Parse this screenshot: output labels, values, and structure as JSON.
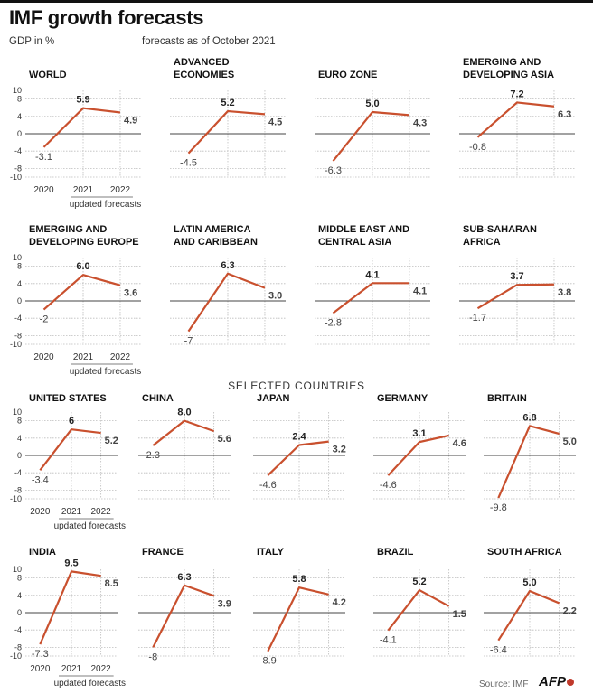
{
  "header": {
    "title": "IMF growth forecasts",
    "unit_label": "GDP in %",
    "forecast_note": "forecasts as of October 2021",
    "section_title": "SELECTED COUNTRIES",
    "source": "Source: IMF",
    "logo": "AFP"
  },
  "colors": {
    "line": "#c9502e",
    "grid": "#bdbdbd",
    "axis": "#444444",
    "text": "#222222"
  },
  "chart_data": [
    {
      "type": "line",
      "title": "WORLD",
      "categories": [
        "2020",
        "2021",
        "2022"
      ],
      "values": [
        -3.1,
        5.9,
        4.9
      ],
      "labels": [
        "-3.1",
        "5.9",
        "4.9"
      ],
      "ylim": [
        -10,
        10
      ],
      "yticks": [
        "10",
        "8",
        "4",
        "0",
        "-4",
        "-8",
        "-10"
      ],
      "xlabel_note": "updated forecasts"
    },
    {
      "type": "line",
      "title": "ADVANCED ECONOMIES",
      "categories": [
        "2020",
        "2021",
        "2022"
      ],
      "values": [
        -4.5,
        5.2,
        4.5
      ],
      "labels": [
        "-4.5",
        "5.2",
        "4.5"
      ],
      "ylim": [
        -10,
        10
      ]
    },
    {
      "type": "line",
      "title": "EURO ZONE",
      "categories": [
        "2020",
        "2021",
        "2022"
      ],
      "values": [
        -6.3,
        5.0,
        4.3
      ],
      "labels": [
        "-6.3",
        "5.0",
        "4.3"
      ],
      "ylim": [
        -10,
        10
      ]
    },
    {
      "type": "line",
      "title": "EMERGING AND DEVELOPING ASIA",
      "categories": [
        "2020",
        "2021",
        "2022"
      ],
      "values": [
        -0.8,
        7.2,
        6.3
      ],
      "labels": [
        "-0.8",
        "7.2",
        "6.3"
      ],
      "ylim": [
        -10,
        10
      ]
    },
    {
      "type": "line",
      "title": "EMERGING AND DEVELOPING EUROPE",
      "categories": [
        "2020",
        "2021",
        "2022"
      ],
      "values": [
        -2,
        6.0,
        3.6
      ],
      "labels": [
        "-2",
        "6.0",
        "3.6"
      ],
      "ylim": [
        -10,
        10
      ],
      "yticks": [
        "10",
        "8",
        "4",
        "0",
        "-4",
        "-8",
        "-10"
      ],
      "xlabel_note": "updated forecasts"
    },
    {
      "type": "line",
      "title": "LATIN AMERICA AND CARIBBEAN",
      "categories": [
        "2020",
        "2021",
        "2022"
      ],
      "values": [
        -7,
        6.3,
        3.0
      ],
      "labels": [
        "-7",
        "6.3",
        "3.0"
      ],
      "ylim": [
        -10,
        10
      ]
    },
    {
      "type": "line",
      "title": "MIDDLE EAST AND CENTRAL ASIA",
      "categories": [
        "2020",
        "2021",
        "2022"
      ],
      "values": [
        -2.8,
        4.1,
        4.1
      ],
      "labels": [
        "-2.8",
        "4.1",
        "4.1"
      ],
      "ylim": [
        -10,
        10
      ]
    },
    {
      "type": "line",
      "title": "SUB-SAHARAN AFRICA",
      "categories": [
        "2020",
        "2021",
        "2022"
      ],
      "values": [
        -1.7,
        3.7,
        3.8
      ],
      "labels": [
        "-1.7",
        "3.7",
        "3.8"
      ],
      "ylim": [
        -10,
        10
      ]
    },
    {
      "type": "line",
      "title": "UNITED STATES",
      "categories": [
        "2020",
        "2021",
        "2022"
      ],
      "values": [
        -3.4,
        6,
        5.2
      ],
      "labels": [
        "-3.4",
        "6",
        "5.2"
      ],
      "ylim": [
        -10,
        10
      ],
      "yticks": [
        "10",
        "8",
        "4",
        "0",
        "-4",
        "-8",
        "-10"
      ],
      "xlabel_note": "updated forecasts"
    },
    {
      "type": "line",
      "title": "CHINA",
      "categories": [
        "2020",
        "2021",
        "2022"
      ],
      "values": [
        2.3,
        8.0,
        5.6
      ],
      "labels": [
        "2.3",
        "8.0",
        "5.6"
      ],
      "ylim": [
        -10,
        10
      ]
    },
    {
      "type": "line",
      "title": "JAPAN",
      "categories": [
        "2020",
        "2021",
        "2022"
      ],
      "values": [
        -4.6,
        2.4,
        3.2
      ],
      "labels": [
        "-4.6",
        "2.4",
        "3.2"
      ],
      "ylim": [
        -10,
        10
      ]
    },
    {
      "type": "line",
      "title": "GERMANY",
      "categories": [
        "2020",
        "2021",
        "2022"
      ],
      "values": [
        -4.6,
        3.1,
        4.6
      ],
      "labels": [
        "-4.6",
        "3.1",
        "4.6"
      ],
      "ylim": [
        -10,
        10
      ]
    },
    {
      "type": "line",
      "title": "BRITAIN",
      "categories": [
        "2020",
        "2021",
        "2022"
      ],
      "values": [
        -9.8,
        6.8,
        5.0
      ],
      "labels": [
        "-9.8",
        "6.8",
        "5.0"
      ],
      "ylim": [
        -10,
        10
      ]
    },
    {
      "type": "line",
      "title": "INDIA",
      "categories": [
        "2020",
        "2021",
        "2022"
      ],
      "values": [
        -7.3,
        9.5,
        8.5
      ],
      "labels": [
        "-7.3",
        "9.5",
        "8.5"
      ],
      "ylim": [
        -10,
        10
      ],
      "yticks": [
        "10",
        "8",
        "4",
        "0",
        "-4",
        "-8",
        "-10"
      ],
      "xlabel_note": "updated forecasts"
    },
    {
      "type": "line",
      "title": "FRANCE",
      "categories": [
        "2020",
        "2021",
        "2022"
      ],
      "values": [
        -8,
        6.3,
        3.9
      ],
      "labels": [
        "-8",
        "6.3",
        "3.9"
      ],
      "ylim": [
        -10,
        10
      ]
    },
    {
      "type": "line",
      "title": "ITALY",
      "categories": [
        "2020",
        "2021",
        "2022"
      ],
      "values": [
        -8.9,
        5.8,
        4.2
      ],
      "labels": [
        "-8.9",
        "5.8",
        "4.2"
      ],
      "ylim": [
        -10,
        10
      ]
    },
    {
      "type": "line",
      "title": "BRAZIL",
      "categories": [
        "2020",
        "2021",
        "2022"
      ],
      "values": [
        -4.1,
        5.2,
        1.5
      ],
      "labels": [
        "-4.1",
        "5.2",
        "1.5"
      ],
      "ylim": [
        -10,
        10
      ]
    },
    {
      "type": "line",
      "title": "SOUTH AFRICA",
      "categories": [
        "2020",
        "2021",
        "2022"
      ],
      "values": [
        -6.4,
        5.0,
        2.2
      ],
      "labels": [
        "-6.4",
        "5.0",
        "2.2"
      ],
      "ylim": [
        -10,
        10
      ]
    }
  ]
}
